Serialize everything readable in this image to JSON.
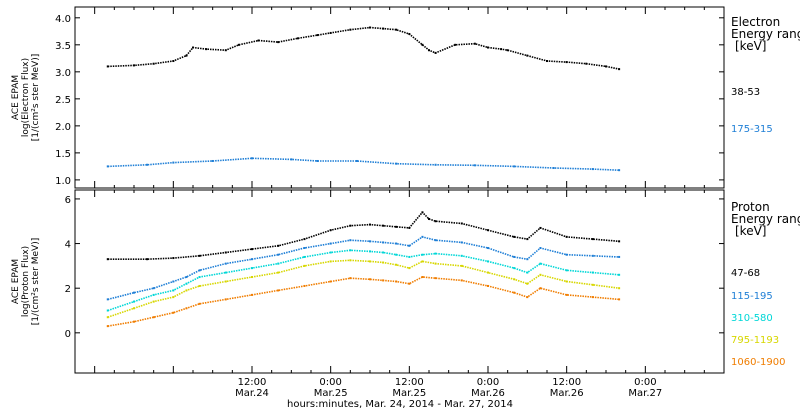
{
  "chart_data": [
    {
      "type": "scatter",
      "ylabel_lines": [
        "ACE EPAM",
        "log(Electron Flux)",
        "[1/(cm²s ster MeV)]"
      ],
      "ylim": [
        0.85,
        4.2
      ],
      "yticks": [
        "1.0",
        "1.5",
        "2.0",
        "2.5",
        "3.0",
        "3.5",
        "4.0"
      ],
      "legend_title_lines": [
        "Electron",
        "Energy ranges"
      ],
      "legend_unit": "[keV]",
      "series": [
        {
          "name": "38-53",
          "color": "#000000",
          "x": [
            -10,
            -6,
            -3,
            0,
            2,
            3,
            5,
            8,
            10,
            13,
            16,
            19,
            22,
            24,
            27,
            30,
            32,
            34,
            36,
            38,
            39,
            40,
            43,
            46,
            48,
            50,
            51,
            54,
            57,
            60,
            63,
            66,
            68
          ],
          "y": [
            3.1,
            3.12,
            3.15,
            3.2,
            3.3,
            3.45,
            3.42,
            3.4,
            3.5,
            3.58,
            3.55,
            3.62,
            3.68,
            3.72,
            3.78,
            3.82,
            3.8,
            3.78,
            3.7,
            3.5,
            3.4,
            3.35,
            3.5,
            3.52,
            3.45,
            3.42,
            3.4,
            3.3,
            3.2,
            3.18,
            3.15,
            3.1,
            3.05
          ]
        },
        {
          "name": "175-315",
          "color": "#1f7fd6",
          "x": [
            -10,
            -4,
            0,
            6,
            12,
            18,
            22,
            28,
            34,
            40,
            46,
            52,
            58,
            64,
            68
          ],
          "y": [
            1.25,
            1.28,
            1.32,
            1.35,
            1.4,
            1.38,
            1.35,
            1.35,
            1.3,
            1.28,
            1.27,
            1.25,
            1.22,
            1.2,
            1.18
          ]
        }
      ]
    },
    {
      "type": "scatter",
      "ylabel_lines": [
        "ACE EPAM",
        "log(Proton Flux)",
        "[1/(cm²s ster MeV)]"
      ],
      "ylim": [
        -1.8,
        6.4
      ],
      "yticks": [
        "0",
        "2",
        "4",
        "6"
      ],
      "legend_title_lines": [
        "Proton",
        "Energy ranges"
      ],
      "legend_unit": "[keV]",
      "series": [
        {
          "name": "47-68",
          "color": "#000000",
          "x": [
            -10,
            -4,
            0,
            4,
            8,
            12,
            16,
            20,
            24,
            27,
            30,
            32,
            34,
            36,
            38,
            39,
            40,
            44,
            48,
            52,
            54,
            56,
            60,
            64,
            68
          ],
          "y": [
            3.3,
            3.3,
            3.35,
            3.45,
            3.6,
            3.75,
            3.9,
            4.2,
            4.6,
            4.8,
            4.85,
            4.8,
            4.75,
            4.7,
            5.4,
            5.1,
            5.0,
            4.9,
            4.6,
            4.3,
            4.2,
            4.7,
            4.3,
            4.2,
            4.1
          ]
        },
        {
          "name": "115-195",
          "color": "#1f7fd6",
          "x": [
            -10,
            -6,
            -3,
            0,
            2,
            4,
            8,
            12,
            16,
            20,
            24,
            27,
            30,
            32,
            34,
            36,
            38,
            40,
            44,
            48,
            52,
            54,
            56,
            60,
            64,
            68
          ],
          "y": [
            1.5,
            1.8,
            2.0,
            2.3,
            2.5,
            2.8,
            3.1,
            3.3,
            3.5,
            3.8,
            4.0,
            4.15,
            4.1,
            4.05,
            4.0,
            3.9,
            4.3,
            4.15,
            4.05,
            3.8,
            3.4,
            3.3,
            3.8,
            3.5,
            3.45,
            3.4
          ]
        },
        {
          "name": "310-580",
          "color": "#00d7d7",
          "x": [
            -10,
            -6,
            -3,
            0,
            2,
            4,
            8,
            12,
            16,
            20,
            24,
            27,
            30,
            32,
            34,
            36,
            38,
            40,
            44,
            48,
            52,
            54,
            56,
            60,
            64,
            68
          ],
          "y": [
            1.0,
            1.4,
            1.7,
            1.9,
            2.2,
            2.5,
            2.7,
            2.9,
            3.1,
            3.4,
            3.6,
            3.7,
            3.65,
            3.6,
            3.5,
            3.4,
            3.5,
            3.55,
            3.45,
            3.2,
            2.9,
            2.7,
            3.1,
            2.8,
            2.7,
            2.6
          ]
        },
        {
          "name": "795-1193",
          "color": "#d7d700",
          "x": [
            -10,
            -6,
            -3,
            0,
            2,
            4,
            8,
            12,
            16,
            20,
            24,
            27,
            30,
            32,
            34,
            36,
            38,
            40,
            44,
            48,
            52,
            54,
            56,
            60,
            64,
            68
          ],
          "y": [
            0.7,
            1.1,
            1.4,
            1.6,
            1.9,
            2.1,
            2.3,
            2.5,
            2.7,
            3.0,
            3.2,
            3.25,
            3.2,
            3.15,
            3.05,
            2.9,
            3.2,
            3.1,
            3.0,
            2.7,
            2.4,
            2.2,
            2.6,
            2.3,
            2.15,
            2.0
          ]
        },
        {
          "name": "1060-1900",
          "color": "#f07d00",
          "x": [
            -10,
            -6,
            -3,
            0,
            2,
            4,
            8,
            12,
            16,
            20,
            24,
            27,
            30,
            32,
            34,
            36,
            38,
            40,
            44,
            48,
            52,
            54,
            56,
            60,
            64,
            68
          ],
          "y": [
            0.3,
            0.5,
            0.7,
            0.9,
            1.1,
            1.3,
            1.5,
            1.7,
            1.9,
            2.1,
            2.3,
            2.45,
            2.4,
            2.35,
            2.3,
            2.2,
            2.5,
            2.45,
            2.35,
            2.1,
            1.8,
            1.6,
            2.0,
            1.7,
            1.6,
            1.5
          ]
        }
      ]
    }
  ],
  "x_axis": {
    "range_hours": [
      -15,
      84
    ],
    "ticks": [
      {
        "h": 12,
        "time": "12:00",
        "date": "Mar.24"
      },
      {
        "h": 24,
        "time": "0:00",
        "date": "Mar.25"
      },
      {
        "h": 36,
        "time": "12:00",
        "date": "Mar.25"
      },
      {
        "h": 48,
        "time": "0:00",
        "date": "Mar.26"
      },
      {
        "h": 60,
        "time": "12:00",
        "date": "Mar.26"
      },
      {
        "h": 72,
        "time": "0:00",
        "date": "Mar.27"
      }
    ],
    "label": "hours:minutes, Mar. 24, 2014 - Mar. 27, 2014"
  }
}
